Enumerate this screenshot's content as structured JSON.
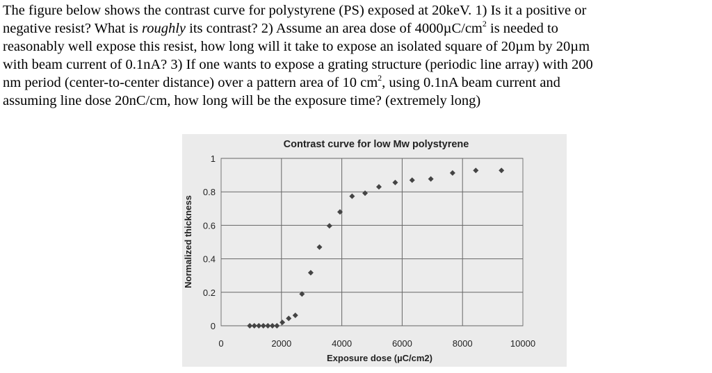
{
  "question": {
    "line1": "The figure below shows the contrast curve for polystyrene (PS) exposed at 20keV. 1) Is it a positive or",
    "line2a": "negative resist? What is ",
    "line2b": "roughly",
    "line2c": " its contrast? 2) Assume an area dose of 4000µC/cm",
    "line2sup": "2",
    "line2d": " is needed to",
    "line3": "reasonably well expose this resist, how long will it take to expose an isolated square of 20µm by 20µm",
    "line4": "with beam current of 0.1nA? 3) If one wants to expose a grating structure (periodic line array) with 200",
    "line5a": "nm period (center-to-center distance) over a pattern area of 10 cm",
    "line5sup": "2",
    "line5b": ", using 0.1nA beam current and",
    "line6": "assuming line dose 20nC/cm, how long will be the exposure time? (extremely long)"
  },
  "chart_data": {
    "type": "scatter",
    "title": "Contrast curve for low Mw polystyrene",
    "xlabel": "Exposure dose (µC/cm2)",
    "ylabel": "Normalized thickness",
    "xlim": [
      0,
      10000
    ],
    "ylim": [
      0,
      1
    ],
    "xticks": [
      "0",
      "2000",
      "4000",
      "6000",
      "8000",
      "10000"
    ],
    "yticks": [
      "0",
      "0.2",
      "0.4",
      "0.6",
      "0.8",
      "1"
    ],
    "grid": true,
    "marker": "diamond",
    "color": "#444444",
    "x": [
      950,
      1100,
      1250,
      1400,
      1550,
      1700,
      1850,
      2030,
      2240,
      2460,
      2680,
      2970,
      3260,
      3590,
      3940,
      4340,
      4770,
      5230,
      5770,
      6330,
      6950,
      7670,
      8440,
      9290
    ],
    "y": [
      0,
      0,
      0,
      0,
      0,
      0,
      0,
      0.02,
      0.044,
      0.062,
      0.19,
      0.317,
      0.47,
      0.597,
      0.68,
      0.774,
      0.792,
      0.83,
      0.856,
      0.87,
      0.877,
      0.913,
      0.928,
      0.928
    ]
  }
}
